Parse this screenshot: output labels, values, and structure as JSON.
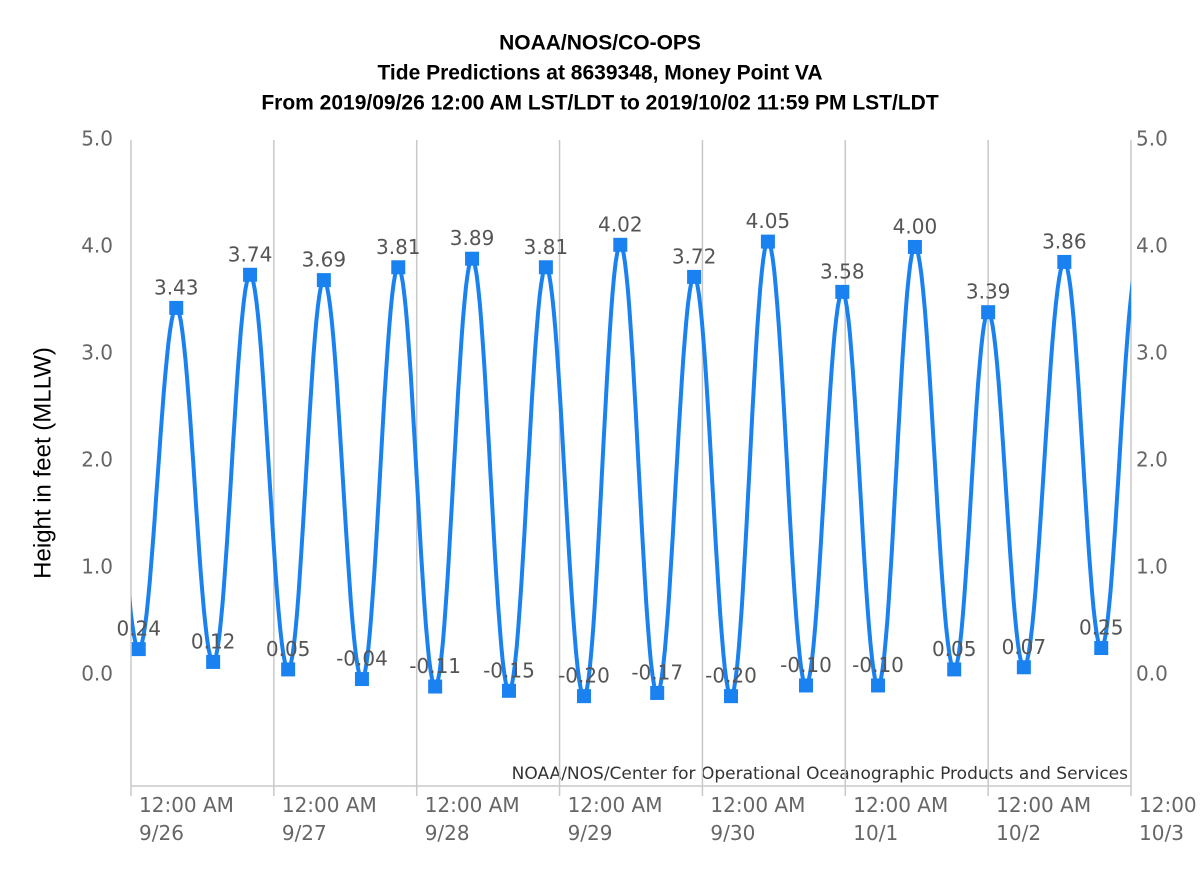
{
  "chart_data": {
    "type": "line",
    "title": [
      "NOAA/NOS/CO-OPS",
      "Tide Predictions at 8639348, Money Point VA",
      "From 2019/09/26 12:00 AM LST/LDT to 2019/10/02 11:59 PM LST/LDT"
    ],
    "y_axis_label": "Height in feet (MLLW)",
    "credits": "NOAA/NOS/Center for Operational Oceanographic Products and Services",
    "color": "#1a82f0",
    "x": [
      1.3,
      7.6,
      13.8,
      20.0,
      26.4,
      32.4,
      38.8,
      44.9,
      51.1,
      57.3,
      63.5,
      69.7,
      76.1,
      82.2,
      88.4,
      94.6,
      100.8,
      107.0,
      113.4,
      119.5,
      125.5,
      131.7,
      138.3,
      144.0,
      150.0,
      156.8,
      163.0
    ],
    "values": [
      0.24,
      3.43,
      0.12,
      3.74,
      0.05,
      3.69,
      -0.04,
      3.81,
      -0.11,
      3.89,
      -0.15,
      3.81,
      -0.2,
      4.02,
      -0.17,
      3.72,
      -0.2,
      4.05,
      -0.1,
      3.58,
      -0.1,
      4.0,
      0.05,
      3.39,
      0.07,
      3.86,
      0.25
    ],
    "value_labels": [
      "0.24",
      "3.43",
      "0.12",
      "3.74",
      "0.05",
      "3.69",
      "-0.04",
      "3.81",
      "-0.11",
      "3.89",
      "-0.15",
      "3.81",
      "-0.20",
      "4.02",
      "-0.17",
      "3.72",
      "-0.20",
      "4.05",
      "-0.10",
      "3.58",
      "-0.10",
      "4.00",
      "0.05",
      "3.39",
      "0.07",
      "3.86",
      "0.25"
    ],
    "xlim": [
      0,
      168
    ],
    "xticks": [
      {
        "value": 0,
        "label": "12:00 AM\n9/26"
      },
      {
        "value": 24,
        "label": "12:00 AM\n9/27"
      },
      {
        "value": 48,
        "label": "12:00 AM\n9/28"
      },
      {
        "value": 72,
        "label": "12:00 AM\n9/29"
      },
      {
        "value": 96,
        "label": "12:00 AM\n9/30"
      },
      {
        "value": 120,
        "label": "12:00 AM\n10/1"
      },
      {
        "value": 144,
        "label": "12:00 AM\n10/2"
      },
      {
        "value": 168,
        "label": "12:00\n10/3"
      }
    ],
    "ylim": [
      -1.04,
      5
    ],
    "yticks": [
      {
        "value": 0,
        "label": "0.0"
      },
      {
        "value": 1,
        "label": "1.0"
      },
      {
        "value": 2,
        "label": "2.0"
      },
      {
        "value": 3,
        "label": "3.0"
      },
      {
        "value": 4,
        "label": "4.0"
      },
      {
        "value": 5,
        "label": "5.0"
      }
    ],
    "y2lim": [
      -1.04,
      5
    ],
    "y2ticks": [
      {
        "value": 0,
        "label": "0.0"
      },
      {
        "value": 1,
        "label": "1.0"
      },
      {
        "value": 2,
        "label": "2.0"
      },
      {
        "value": 3,
        "label": "3.0"
      },
      {
        "value": 4,
        "label": "4.0"
      },
      {
        "value": 5,
        "label": "5.0"
      }
    ],
    "grid": true
  }
}
